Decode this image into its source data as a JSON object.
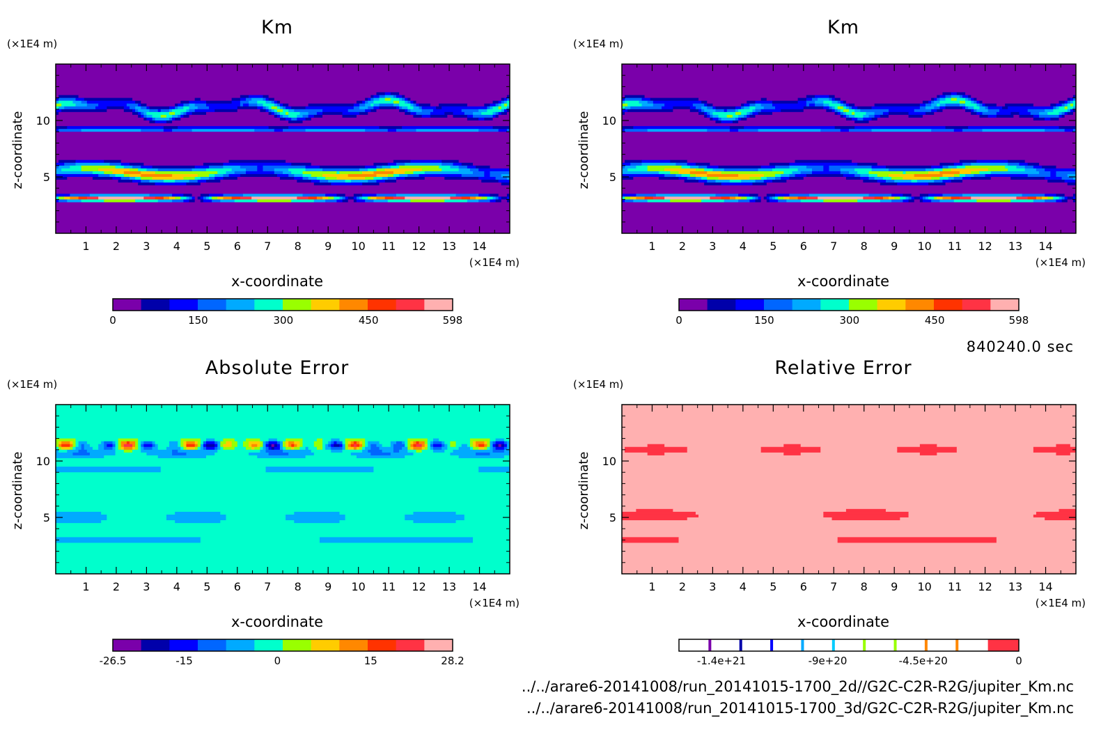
{
  "figure": {
    "timestamp": "840240.0 sec",
    "file_paths": [
      "../../arare6-20141008/run_20141015-1700_2d//G2C-C2R-R2G/jupiter_Km.nc",
      "../../arare6-20141008/run_20141015-1700_3d/G2C-C2R-R2G/jupiter_Km.nc"
    ]
  },
  "chart_data": [
    {
      "type": "heatmap",
      "title": "Km",
      "xlabel": "x-coordinate",
      "ylabel": "z-coordinate",
      "x_unit": "(×1E4 m)",
      "y_unit": "(×1E4 m)",
      "xlim": [
        0,
        15
      ],
      "ylim": [
        0,
        15
      ],
      "xticks": [
        "1",
        "2",
        "3",
        "4",
        "5",
        "6",
        "7",
        "8",
        "9",
        "10",
        "11",
        "12",
        "13",
        "14"
      ],
      "yticks": [
        "5",
        "10"
      ],
      "colorbar": {
        "labels": [
          "0",
          "150",
          "300",
          "450",
          "598"
        ],
        "label_values": [
          0,
          150,
          300,
          450,
          598
        ],
        "range": [
          0,
          598
        ],
        "colors": [
          "#7a00aa",
          "#0000aa",
          "#0000ff",
          "#0066ff",
          "#00aaff",
          "#00ffcc",
          "#99ff00",
          "#ffcc00",
          "#ff8800",
          "#ff3300",
          "#ff3344",
          "#ffb0b0"
        ]
      },
      "field": "km"
    },
    {
      "type": "heatmap",
      "title": "Km",
      "xlabel": "x-coordinate",
      "ylabel": "z-coordinate",
      "x_unit": "(×1E4 m)",
      "y_unit": "(×1E4 m)",
      "xlim": [
        0,
        15
      ],
      "ylim": [
        0,
        15
      ],
      "xticks": [
        "1",
        "2",
        "3",
        "4",
        "5",
        "6",
        "7",
        "8",
        "9",
        "10",
        "11",
        "12",
        "13",
        "14"
      ],
      "yticks": [
        "5",
        "10"
      ],
      "colorbar": {
        "labels": [
          "0",
          "150",
          "300",
          "450",
          "598"
        ],
        "label_values": [
          0,
          150,
          300,
          450,
          598
        ],
        "range": [
          0,
          598
        ],
        "colors": [
          "#7a00aa",
          "#0000aa",
          "#0000ff",
          "#0066ff",
          "#00aaff",
          "#00ffcc",
          "#99ff00",
          "#ffcc00",
          "#ff8800",
          "#ff3300",
          "#ff3344",
          "#ffb0b0"
        ]
      },
      "field": "km"
    },
    {
      "type": "heatmap",
      "title": "Absolute Error",
      "xlabel": "x-coordinate",
      "ylabel": "z-coordinate",
      "x_unit": "(×1E4 m)",
      "y_unit": "(×1E4 m)",
      "xlim": [
        0,
        15
      ],
      "ylim": [
        0,
        15
      ],
      "xticks": [
        "1",
        "2",
        "3",
        "4",
        "5",
        "6",
        "7",
        "8",
        "9",
        "10",
        "11",
        "12",
        "13",
        "14"
      ],
      "yticks": [
        "5",
        "10"
      ],
      "colorbar": {
        "labels": [
          "-26.5",
          "-15",
          "0",
          "15",
          "28.2"
        ],
        "label_values": [
          -26.5,
          -15,
          0,
          15,
          28.2
        ],
        "range": [
          -26.5,
          28.2
        ],
        "colors": [
          "#7a00aa",
          "#0000aa",
          "#0000ff",
          "#0066ff",
          "#00aaff",
          "#00ffcc",
          "#99ff00",
          "#ffcc00",
          "#ff8800",
          "#ff3300",
          "#ff3344",
          "#ffb0b0"
        ]
      },
      "field": "abs"
    },
    {
      "type": "heatmap",
      "title": "Relative Error",
      "xlabel": "x-coordinate",
      "ylabel": "z-coordinate",
      "x_unit": "(×1E4 m)",
      "y_unit": "(×1E4 m)",
      "xlim": [
        0,
        15
      ],
      "ylim": [
        0,
        15
      ],
      "xticks": [
        "1",
        "2",
        "3",
        "4",
        "5",
        "6",
        "7",
        "8",
        "9",
        "10",
        "11",
        "12",
        "13",
        "14"
      ],
      "yticks": [
        "5",
        "10"
      ],
      "colorbar": {
        "labels": [
          "-1.4e+21",
          "-9e+20",
          "-4.5e+20",
          "0"
        ],
        "label_values": [
          -1.4e+21,
          -9e+20,
          -4.5e+20,
          0
        ],
        "range": [
          -1.6e+21,
          0
        ],
        "colors": [
          "#ffffff",
          "#ffffff",
          "#ffffff",
          "#ffffff",
          "#ffffff",
          "#ffffff",
          "#ffffff",
          "#ffffff",
          "#ffffff",
          "#ffffff",
          "#ff3344"
        ],
        "tick_colors": [
          "#7a00aa",
          "#0000aa",
          "#0000ff",
          "#00aaff",
          "#00ccff",
          "#99ff00",
          "#99ff00",
          "#ff8800",
          "#ff8800"
        ]
      },
      "field": "rel"
    }
  ]
}
